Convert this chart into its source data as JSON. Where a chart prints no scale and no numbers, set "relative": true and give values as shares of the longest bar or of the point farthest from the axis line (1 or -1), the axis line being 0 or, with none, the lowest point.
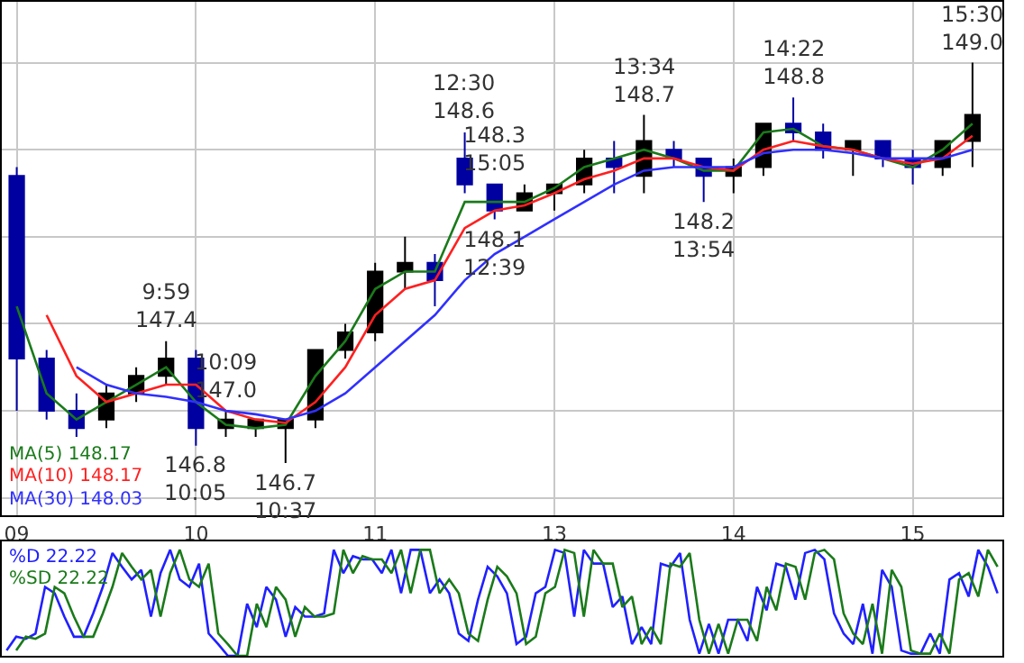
{
  "chart_data": [
    {
      "type": "candlestick",
      "categories": [
        "09",
        null,
        null,
        null,
        null,
        null,
        "10",
        null,
        null,
        null,
        null,
        null,
        "11",
        null,
        null,
        null,
        null,
        null,
        "13",
        null,
        null,
        null,
        null,
        null,
        "14",
        null,
        null,
        null,
        null,
        null,
        "15",
        null,
        null
      ],
      "ohlc": [
        [
          148.35,
          148.4,
          147.0,
          147.3
        ],
        [
          147.3,
          147.35,
          146.95,
          147.0
        ],
        [
          147.0,
          147.1,
          146.85,
          146.9
        ],
        [
          146.95,
          147.15,
          146.9,
          147.1
        ],
        [
          147.1,
          147.25,
          147.05,
          147.2
        ],
        [
          147.2,
          147.4,
          147.15,
          147.3
        ],
        [
          147.3,
          147.35,
          146.8,
          146.9
        ],
        [
          146.9,
          147.0,
          146.85,
          146.95
        ],
        [
          146.9,
          146.95,
          146.85,
          146.95
        ],
        [
          146.9,
          146.95,
          146.7,
          146.95
        ],
        [
          146.95,
          147.35,
          146.9,
          147.35
        ],
        [
          147.35,
          147.5,
          147.3,
          147.45
        ],
        [
          147.45,
          147.85,
          147.4,
          147.8
        ],
        [
          147.8,
          148.0,
          147.7,
          147.85
        ],
        [
          147.85,
          147.9,
          147.6,
          147.75
        ],
        [
          148.45,
          148.6,
          148.25,
          148.3
        ],
        [
          148.3,
          148.3,
          148.1,
          148.15
        ],
        [
          148.15,
          148.3,
          148.15,
          148.25
        ],
        [
          148.25,
          148.3,
          148.15,
          148.3
        ],
        [
          148.3,
          148.5,
          148.25,
          148.45
        ],
        [
          148.45,
          148.55,
          148.25,
          148.4
        ],
        [
          148.35,
          148.7,
          148.25,
          148.55
        ],
        [
          148.5,
          148.55,
          148.4,
          148.45
        ],
        [
          148.45,
          148.45,
          148.2,
          148.35
        ],
        [
          148.35,
          148.45,
          148.25,
          148.4
        ],
        [
          148.4,
          148.65,
          148.35,
          148.65
        ],
        [
          148.65,
          148.8,
          148.55,
          148.6
        ],
        [
          148.6,
          148.65,
          148.45,
          148.5
        ],
        [
          148.5,
          148.55,
          148.35,
          148.55
        ],
        [
          148.55,
          148.55,
          148.4,
          148.45
        ],
        [
          148.45,
          148.5,
          148.3,
          148.4
        ],
        [
          148.4,
          148.55,
          148.35,
          148.55
        ],
        [
          148.55,
          149.0,
          148.4,
          148.7
        ]
      ],
      "colors": [
        "#0000a0",
        "#0000a0",
        "#0000a0",
        "#000000",
        "#000000",
        "#000000",
        "#0000a0",
        "#000000",
        "#000000",
        "#000000",
        "#000000",
        "#000000",
        "#000000",
        "#000000",
        "#0000a0",
        "#0000a0",
        "#0000a0",
        "#000000",
        "#000000",
        "#000000",
        "#0000a0",
        "#000000",
        "#0000a0",
        "#0000a0",
        "#000000",
        "#000000",
        "#0000a0",
        "#0000a0",
        "#000000",
        "#0000a0",
        "#0000a0",
        "#000000",
        "#000000"
      ],
      "series": [
        {
          "type": "line",
          "name": "MA(5) 148.17",
          "color": "#1a7a1a",
          "values": [
            147.6,
            147.1,
            146.95,
            147.05,
            147.15,
            147.25,
            147.05,
            146.92,
            146.9,
            146.92,
            147.2,
            147.4,
            147.7,
            147.8,
            147.8,
            148.2,
            148.2,
            148.2,
            148.28,
            148.4,
            148.45,
            148.5,
            148.45,
            148.38,
            148.38,
            148.6,
            148.62,
            148.52,
            148.5,
            148.45,
            148.4,
            148.5,
            148.65
          ]
        },
        {
          "type": "line",
          "name": "MA(10) 148.17",
          "color": "#ff2020",
          "values": [
            null,
            147.55,
            147.2,
            147.05,
            147.1,
            147.15,
            147.15,
            147.0,
            146.95,
            146.93,
            147.05,
            147.25,
            147.55,
            147.7,
            147.75,
            148.05,
            148.15,
            148.18,
            148.25,
            148.33,
            148.38,
            148.45,
            148.45,
            148.4,
            148.38,
            148.5,
            148.55,
            148.52,
            148.5,
            148.45,
            148.42,
            148.45,
            148.58
          ]
        },
        {
          "type": "line",
          "name": "MA(30) 148.03",
          "color": "#3030ff",
          "values": [
            null,
            null,
            147.25,
            147.15,
            147.1,
            147.08,
            147.05,
            147.0,
            146.98,
            146.95,
            147.0,
            147.1,
            147.25,
            147.4,
            147.55,
            147.75,
            147.9,
            148.0,
            148.1,
            148.2,
            148.3,
            148.38,
            148.4,
            148.4,
            148.4,
            148.48,
            148.5,
            148.5,
            148.48,
            148.45,
            148.45,
            148.45,
            148.5
          ]
        }
      ],
      "ylim": [
        146.4,
        149.35
      ],
      "yticks": [
        {
          "value": 146.5,
          "label": null
        },
        {
          "value": 147.0,
          "label": null
        },
        {
          "value": 147.5,
          "label": null
        },
        {
          "value": 148.0,
          "label": null
        },
        {
          "value": 148.5,
          "label": null
        },
        {
          "value": 149.0,
          "label": null
        }
      ],
      "tick_labels": "x",
      "grid": true,
      "legend": "bottom left",
      "annotations": [
        {
          "text": "9:59\n147.4",
          "y": 147.4
        },
        {
          "text": "10:09\n147.0",
          "y": 147.0
        },
        {
          "text": "146.8\n10:05",
          "y": 146.8
        },
        {
          "text": "146.7\n10:37",
          "y": 146.7
        },
        {
          "text": "12:30\n148.6",
          "y": 148.6
        },
        {
          "text": "148.1\n12:39",
          "y": 148.1
        },
        {
          "text": "13:34\n148.7",
          "y": 148.7
        },
        {
          "text": "148.2\n13:54",
          "y": 148.2
        },
        {
          "text": "14:22\n148.8",
          "y": 148.8
        },
        {
          "text": "148.3\n15:05",
          "y": 148.3
        },
        {
          "text": "15:30\n149.0",
          "y": 149.0
        }
      ]
    },
    {
      "type": "line",
      "relative": true,
      "tick_labels": false,
      "legend": "top left",
      "categories": [
        null,
        null,
        null,
        null,
        null,
        null,
        null,
        null,
        null,
        null,
        null,
        null,
        null,
        null,
        null,
        null,
        null,
        null,
        null,
        null,
        null,
        null,
        null,
        null,
        null,
        null,
        null,
        null,
        null,
        null,
        null,
        null,
        null,
        null,
        null,
        null,
        null,
        null,
        null,
        null,
        null,
        null,
        null,
        null,
        null,
        null,
        null,
        null,
        null,
        null,
        null,
        null,
        null,
        null,
        null,
        null,
        null,
        null,
        null,
        null,
        null,
        null,
        null,
        null,
        null,
        null,
        null,
        null,
        null,
        null,
        null,
        null,
        null,
        null,
        null,
        null,
        null,
        null,
        null,
        null,
        null,
        null,
        null,
        null,
        null,
        null,
        null,
        null,
        null,
        null,
        null,
        null,
        null,
        null,
        null,
        null,
        null,
        null,
        null,
        null,
        null,
        null,
        null,
        null
      ],
      "series": [
        {
          "name": "%D 22.22",
          "color": "#2020ff",
          "values": [
            0.05,
            0.18,
            0.16,
            0.21,
            0.65,
            0.59,
            0.37,
            0.18,
            0.18,
            0.4,
            0.65,
            0.97,
            0.84,
            0.72,
            0.81,
            0.37,
            0.78,
            1.0,
            0.72,
            0.65,
            0.87,
            0.21,
            0.11,
            0,
            0,
            0.49,
            0.27,
            0.65,
            0.53,
            0.18,
            0.46,
            0.37,
            0.37,
            0.4,
            1.0,
            0.78,
            0.94,
            0.91,
            0.91,
            0.78,
            1.0,
            0.59,
            1.0,
            1.0,
            0.59,
            0.72,
            0.59,
            0.21,
            0.14,
            0.53,
            0.84,
            0.75,
            0.59,
            0.11,
            0.18,
            0.59,
            0.65,
            1.0,
            0.97,
            0.37,
            1.0,
            0.87,
            0.87,
            0.46,
            0.56,
            0.11,
            0.27,
            0.11,
            0.87,
            0.84,
            0.97,
            0.34,
            0.02,
            0.3,
            0.02,
            0.34,
            0.34,
            0.14,
            0.65,
            0.43,
            0.87,
            0.84,
            0.53,
            0.97,
            1.0,
            0.91,
            0.4,
            0.21,
            0.11,
            0.49,
            0.02,
            0.81,
            0.65,
            0.05,
            0.02,
            0.02,
            0.21,
            0.02,
            0.72,
            0.78,
            0.56,
            1.0,
            0.84,
            0.59
          ]
        },
        {
          "name": "%SD 22.22",
          "color": "#1a7a1a",
          "values": [
            null,
            0.05,
            0.18,
            0.16,
            0.21,
            0.65,
            0.59,
            0.37,
            0.18,
            0.18,
            0.4,
            0.65,
            0.97,
            0.84,
            0.72,
            0.81,
            0.37,
            0.78,
            1.0,
            0.72,
            0.65,
            0.87,
            0.21,
            0.11,
            0,
            0,
            0.49,
            0.27,
            0.65,
            0.53,
            0.18,
            0.46,
            0.37,
            0.37,
            0.4,
            1.0,
            0.78,
            0.94,
            0.91,
            0.91,
            0.78,
            1.0,
            0.59,
            1.0,
            1.0,
            0.59,
            0.72,
            0.59,
            0.21,
            0.14,
            0.53,
            0.84,
            0.75,
            0.59,
            0.11,
            0.18,
            0.59,
            0.65,
            1.0,
            0.97,
            0.37,
            1.0,
            0.87,
            0.87,
            0.46,
            0.56,
            0.11,
            0.27,
            0.11,
            0.87,
            0.84,
            0.97,
            0.34,
            0.02,
            0.3,
            0.02,
            0.34,
            0.34,
            0.14,
            0.65,
            0.43,
            0.87,
            0.84,
            0.53,
            0.97,
            1.0,
            0.91,
            0.4,
            0.21,
            0.11,
            0.49,
            0.02,
            0.81,
            0.65,
            0.05,
            0.02,
            0.02,
            0.21,
            0.02,
            0.72,
            0.78,
            0.56,
            1.0,
            0.84
          ]
        }
      ]
    }
  ]
}
